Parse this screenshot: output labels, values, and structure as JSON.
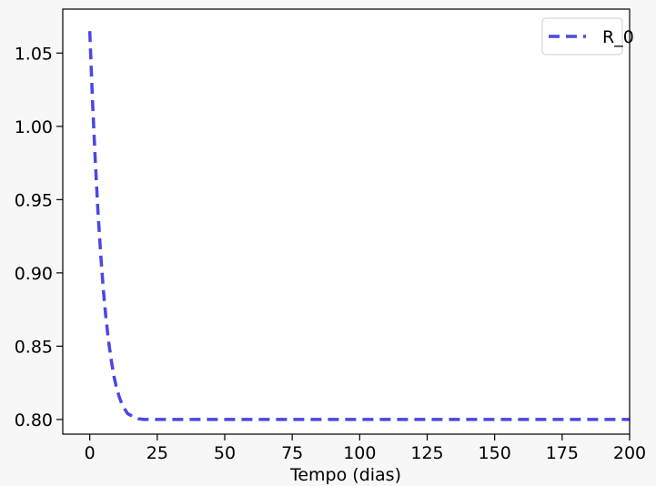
{
  "chart_data": {
    "type": "line",
    "title": "",
    "xlabel": "Tempo (dias)",
    "ylabel": "",
    "xlim": [
      -10,
      200
    ],
    "ylim": [
      0.79,
      1.08
    ],
    "x_ticks": [
      0,
      25,
      50,
      75,
      100,
      125,
      150,
      175,
      200
    ],
    "x_tick_labels": [
      "0",
      "25",
      "50",
      "75",
      "100",
      "125",
      "150",
      "175",
      "200"
    ],
    "y_ticks": [
      0.8,
      0.85,
      0.9,
      0.95,
      1.0,
      1.05
    ],
    "y_tick_labels": [
      "0.80",
      "0.85",
      "0.90",
      "0.95",
      "1.00",
      "1.05"
    ],
    "grid": false,
    "legend_position": "top-right",
    "series": [
      {
        "name": "R_0",
        "color": "#4b46e6",
        "line_style": "dashed",
        "x": [
          0,
          1,
          2,
          3,
          4,
          5,
          6,
          7,
          8,
          9,
          10,
          11,
          12,
          13,
          14,
          15,
          16,
          18,
          20,
          25,
          30,
          40,
          50,
          75,
          100,
          125,
          150,
          175,
          200
        ],
        "y": [
          1.065,
          1.018,
          0.978,
          0.943,
          0.914,
          0.889,
          0.869,
          0.853,
          0.84,
          0.829,
          0.821,
          0.815,
          0.81,
          0.807,
          0.804,
          0.803,
          0.802,
          0.8005,
          0.8,
          0.8,
          0.8,
          0.8,
          0.8,
          0.8,
          0.8,
          0.8,
          0.8,
          0.8,
          0.8
        ]
      }
    ]
  }
}
